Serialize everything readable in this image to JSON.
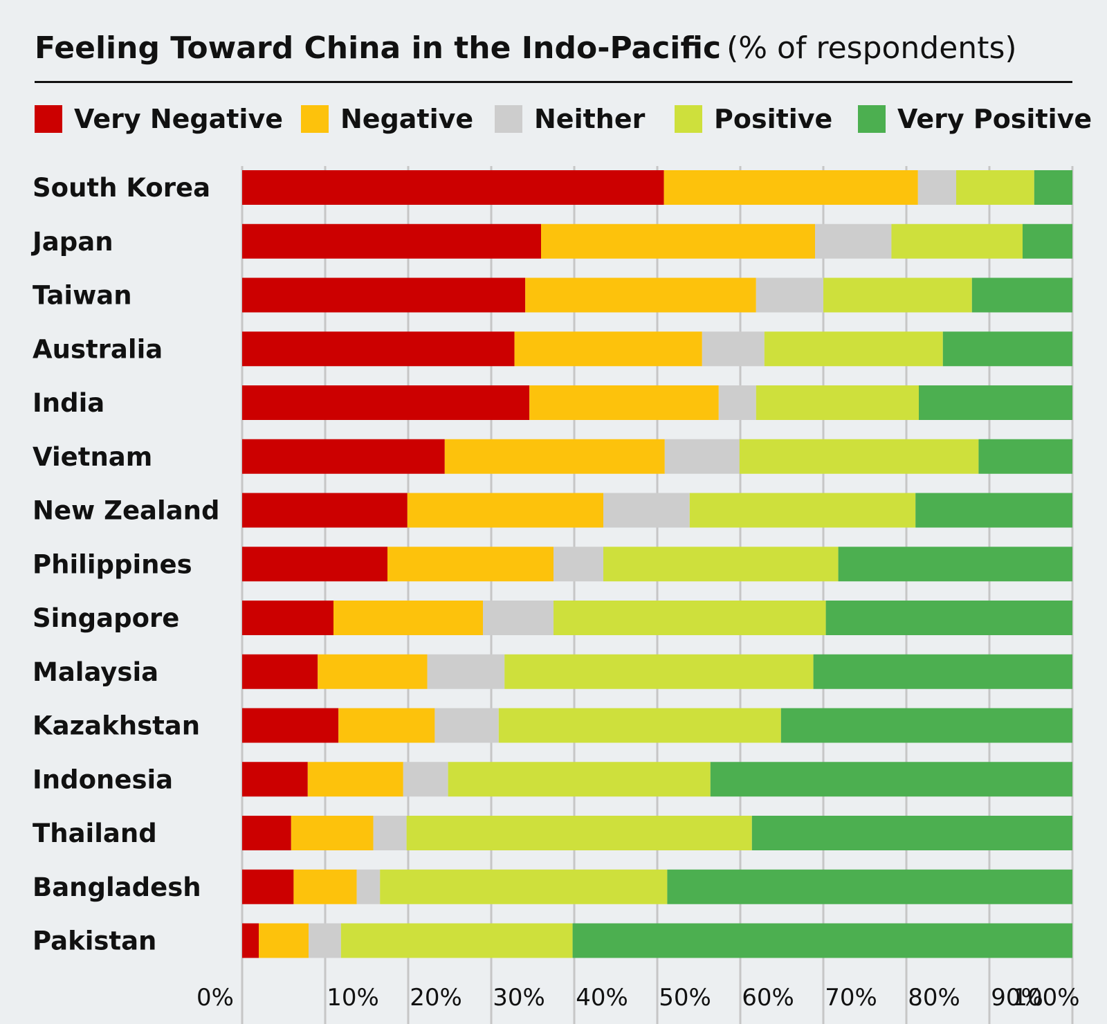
{
  "title": {
    "bold": "Feeling Toward China in the Indo-Pacific",
    "rest": "(% of respondents)"
  },
  "legend": [
    {
      "label": "Very Negative",
      "color": "#cc0000"
    },
    {
      "label": "Negative",
      "color": "#fdc20c"
    },
    {
      "label": "Neither",
      "color": "#cdcdcd"
    },
    {
      "label": "Positive",
      "color": "#cee03c"
    },
    {
      "label": "Very Positive",
      "color": "#4caf50"
    }
  ],
  "chart_data": {
    "type": "bar",
    "orientation": "horizontal",
    "stacked": true,
    "title": "Feeling Toward China in the Indo-Pacific (% of respondents)",
    "categories": [
      "South Korea",
      "Japan",
      "Taiwan",
      "Australia",
      "India",
      "Vietnam",
      "New Zealand",
      "Philippines",
      "Singapore",
      "Malaysia",
      "Kazakhstan",
      "Indonesia",
      "Thailand",
      "Bangladesh",
      "Pakistan"
    ],
    "series": [
      {
        "name": "Very Negative",
        "color": "#cc0000",
        "values": [
          50.8,
          36.0,
          34.1,
          32.8,
          34.6,
          24.4,
          19.9,
          17.5,
          11.0,
          9.1,
          11.6,
          7.9,
          5.9,
          6.2,
          2.0
        ]
      },
      {
        "name": "Negative",
        "color": "#fdc20c",
        "values": [
          30.6,
          33.0,
          27.8,
          22.6,
          22.8,
          26.5,
          23.6,
          20.0,
          18.0,
          13.2,
          11.6,
          11.5,
          9.9,
          7.6,
          6.0
        ]
      },
      {
        "name": "Neither",
        "color": "#cdcdcd",
        "values": [
          4.6,
          9.2,
          8.1,
          7.5,
          4.5,
          9.0,
          10.4,
          6.0,
          8.5,
          9.3,
          7.7,
          5.4,
          4.0,
          2.8,
          3.9
        ]
      },
      {
        "name": "Positive",
        "color": "#cee03c",
        "values": [
          9.4,
          15.8,
          17.9,
          21.5,
          19.6,
          28.8,
          27.2,
          28.3,
          32.8,
          37.2,
          34.0,
          31.6,
          41.6,
          34.6,
          27.9
        ]
      },
      {
        "name": "Very Positive",
        "color": "#4caf50",
        "values": [
          4.6,
          6.0,
          12.1,
          15.6,
          18.5,
          11.3,
          18.9,
          28.2,
          29.7,
          31.2,
          35.1,
          43.6,
          38.6,
          48.8,
          60.2
        ]
      }
    ],
    "xlim": [
      0,
      100
    ],
    "xticks": [
      "0%",
      "10%",
      "20%",
      "30%",
      "40%",
      "50%",
      "60%",
      "70%",
      "80%",
      "90%",
      "100%"
    ],
    "grid": true,
    "legend_position": "top"
  }
}
